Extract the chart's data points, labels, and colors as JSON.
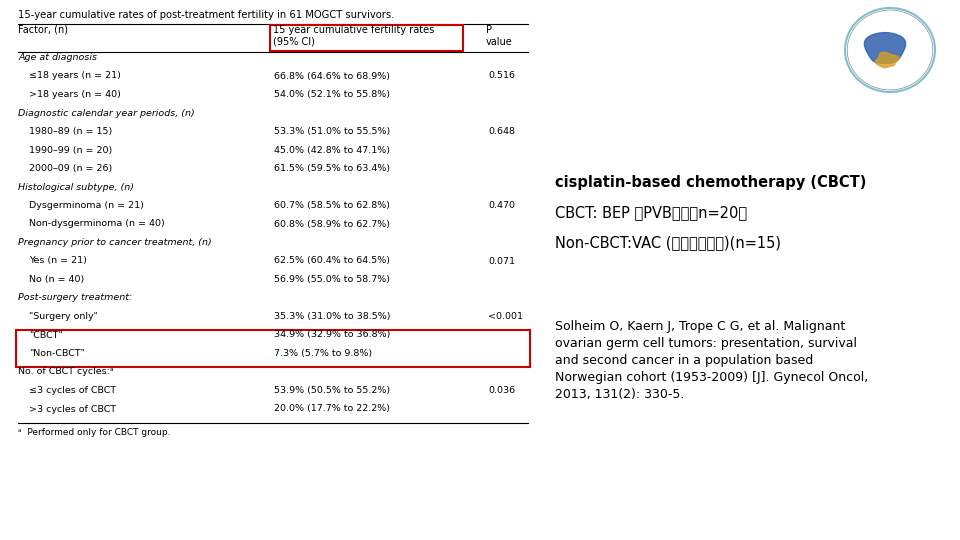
{
  "title": "15-year cumulative rates of post-treatment fertility in 61 MOGCT survivors.",
  "col1_header": "Factor, (n)",
  "col2_header": "15 year cumulative fertility rates\n(95% CI)",
  "col3_header": "P\nvalue",
  "rows": [
    {
      "label": "Age at diagnosis",
      "indent": 0,
      "italic": true,
      "value": "",
      "pvalue": ""
    },
    {
      "label": "≤18 years (n = 21)",
      "indent": 1,
      "italic": false,
      "value": "66.8% (64.6% to 68.9%)",
      "pvalue": "0.516"
    },
    {
      "label": ">18 years (n = 40)",
      "indent": 1,
      "italic": false,
      "value": "54.0% (52.1% to 55.8%)",
      "pvalue": ""
    },
    {
      "label": "Diagnostic calendar year periods, (n)",
      "indent": 0,
      "italic": true,
      "value": "",
      "pvalue": ""
    },
    {
      "label": "1980–89 (n = 15)",
      "indent": 1,
      "italic": false,
      "value": "53.3% (51.0% to 55.5%)",
      "pvalue": "0.648"
    },
    {
      "label": "1990–99 (n = 20)",
      "indent": 1,
      "italic": false,
      "value": "45.0% (42.8% to 47.1%)",
      "pvalue": ""
    },
    {
      "label": "2000–09 (n = 26)",
      "indent": 1,
      "italic": false,
      "value": "61.5% (59.5% to 63.4%)",
      "pvalue": ""
    },
    {
      "label": "Histological subtype, (n)",
      "indent": 0,
      "italic": true,
      "value": "",
      "pvalue": ""
    },
    {
      "label": "Dysgerminoma (n = 21)",
      "indent": 1,
      "italic": false,
      "value": "60.7% (58.5% to 62.8%)",
      "pvalue": "0.470"
    },
    {
      "label": "Non-dysgerminoma (n = 40)",
      "indent": 1,
      "italic": false,
      "value": "60.8% (58.9% to 62.7%)",
      "pvalue": ""
    },
    {
      "label": "Pregnancy prior to cancer treatment, (n)",
      "indent": 0,
      "italic": true,
      "value": "",
      "pvalue": ""
    },
    {
      "label": "Yes (n = 21)",
      "indent": 1,
      "italic": false,
      "value": "62.5% (60.4% to 64.5%)",
      "pvalue": "0.071"
    },
    {
      "label": "No (n = 40)",
      "indent": 1,
      "italic": false,
      "value": "56.9% (55.0% to 58.7%)",
      "pvalue": ""
    },
    {
      "label": "Post-surgery treatment:",
      "indent": 0,
      "italic": true,
      "value": "",
      "pvalue": ""
    },
    {
      "label": "\"Surgery only\"",
      "indent": 1,
      "italic": false,
      "value": "35.3% (31.0% to 38.5%)",
      "pvalue": "<0.001"
    },
    {
      "label": "\"CBCT\"",
      "indent": 1,
      "italic": false,
      "value": "34.9% (32.9% to 36.8%)",
      "pvalue": "",
      "highlight": true
    },
    {
      "label": "\"Non-CBCT\"",
      "indent": 1,
      "italic": false,
      "value": "7.3% (5.7% to 9.8%)",
      "pvalue": "",
      "highlight": true
    },
    {
      "label": "No. of CBCT cycles:ᵃ",
      "indent": 0,
      "italic": false,
      "value": "",
      "pvalue": ""
    },
    {
      "label": "≤3 cycles of CBCT",
      "indent": 1,
      "italic": false,
      "value": "53.9% (50.5% to 55.2%)",
      "pvalue": "0.036"
    },
    {
      "label": ">3 cycles of CBCT",
      "indent": 1,
      "italic": false,
      "value": "20.0% (17.7% to 22.2%)",
      "pvalue": ""
    }
  ],
  "footnote": "ᵃ  Performed only for CBCT group.",
  "right_line1": "cisplatin-based chemotherapy (CBCT)",
  "right_line2": "CBCT: BEP 和PVB方案（n=20）",
  "right_line3": "Non-CBCT:VAC (含烷化剂方案)(n=15)",
  "ref_line1": "Solheim O, Kaern J, Trope C G, et al. Malignant",
  "ref_line2": "ovarian germ cell tumors: presentation, survival",
  "ref_line3": "and second cancer in a population based",
  "ref_line4": "Norwegian cohort (1953-2009) [J]. Gynecol Oncol,",
  "ref_line5": "2013, 131(2): 330-5.",
  "bg_color": "#ffffff",
  "text_color": "#000000",
  "highlight_box_color": "#cc0000",
  "col2_header_box_color": "#cc0000"
}
